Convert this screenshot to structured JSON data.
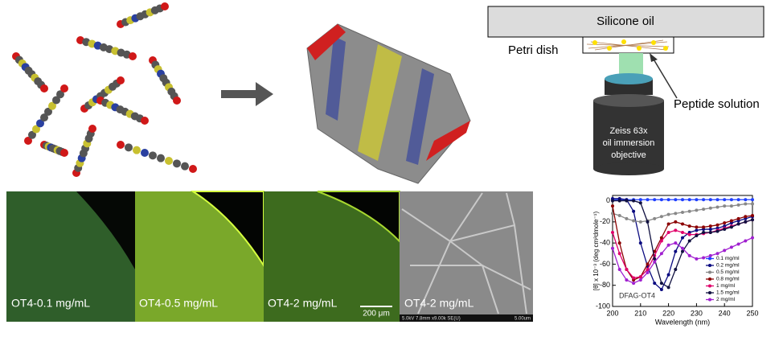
{
  "diagram": {
    "oil": "Silicone oil",
    "dish": "Petri dish",
    "solution": "Peptide solution",
    "objective": [
      "Zeiss 63x",
      "oil immersion",
      "objective"
    ]
  },
  "micrographs": {
    "labels": [
      "OT4-0.1 mg/mL",
      "OT4-0.5 mg/mL",
      "OT4-2 mg/mL",
      "OT4-2 mg/mL"
    ],
    "scale_bar": "200 μm",
    "sem_info": "5.0kV 7.8mm x9.00k SE(U)",
    "sem_scale": "5.00um"
  },
  "chart_data": {
    "type": "line",
    "xlabel": "Wavelength (nm)",
    "ylabel": "[θ] x 10⁻³ (deg cm²dmole⁻¹)",
    "annotation": "DFAG-OT4",
    "x": [
      200,
      202.5,
      205,
      207.5,
      210,
      212.5,
      215,
      217.5,
      220,
      222.5,
      225,
      227.5,
      230,
      232.5,
      235,
      237.5,
      240,
      242.5,
      245,
      247.5,
      250
    ],
    "series": [
      {
        "name": "0.1 mg/ml",
        "color": "#1f3fff",
        "values": [
          1,
          1,
          1,
          1,
          1,
          1,
          1,
          1,
          1,
          1,
          1,
          1,
          1,
          1,
          1,
          1,
          1,
          1,
          1,
          1,
          1
        ]
      },
      {
        "name": "0.2 mg/ml",
        "color": "#0a0a80",
        "values": [
          2,
          2,
          1,
          -10,
          -40,
          -62,
          -78,
          -84,
          -70,
          -48,
          -35,
          -30,
          -28,
          -27,
          -27,
          -26,
          -24,
          -21,
          -19,
          -17,
          -15
        ]
      },
      {
        "name": "0.5 mg/ml",
        "color": "#888888",
        "values": [
          -12,
          -14,
          -17,
          -19,
          -20,
          -19,
          -17,
          -15,
          -13,
          -12,
          -11,
          -10,
          -9,
          -8,
          -7,
          -6,
          -5,
          -5,
          -4,
          -3,
          -3
        ]
      },
      {
        "name": "0.8 mg/ml",
        "color": "#8b0000",
        "values": [
          -5,
          -40,
          -65,
          -75,
          -72,
          -60,
          -48,
          -35,
          -22,
          -20,
          -22,
          -24,
          -25,
          -25,
          -24,
          -23,
          -21,
          -19,
          -17,
          -15,
          -14
        ]
      },
      {
        "name": "1 mg/ml",
        "color": "#e0006a",
        "values": [
          -30,
          -50,
          -65,
          -73,
          -72,
          -65,
          -52,
          -38,
          -30,
          -28,
          -30,
          -32,
          -32,
          -31,
          -30,
          -28,
          -26,
          -24,
          -22,
          -20,
          -18
        ]
      },
      {
        "name": "1.5 mg/ml",
        "color": "#101040",
        "values": [
          0,
          0,
          0,
          0,
          -2,
          -20,
          -55,
          -78,
          -82,
          -65,
          -48,
          -38,
          -33,
          -30,
          -30,
          -29,
          -27,
          -25,
          -22,
          -20,
          -18
        ]
      },
      {
        "name": "2 mg/ml",
        "color": "#a020d0",
        "values": [
          -45,
          -65,
          -75,
          -78,
          -75,
          -68,
          -58,
          -50,
          -42,
          -40,
          -45,
          -52,
          -55,
          -54,
          -52,
          -50,
          -47,
          -44,
          -41,
          -38,
          -35
        ]
      }
    ],
    "xlim": [
      200,
      250
    ],
    "xticks": [
      200,
      210,
      220,
      230,
      240,
      250
    ],
    "ylim": [
      -100,
      5
    ],
    "yticks": [
      0,
      -20,
      -40,
      -60,
      -80,
      -100
    ],
    "legend": "lower right"
  }
}
